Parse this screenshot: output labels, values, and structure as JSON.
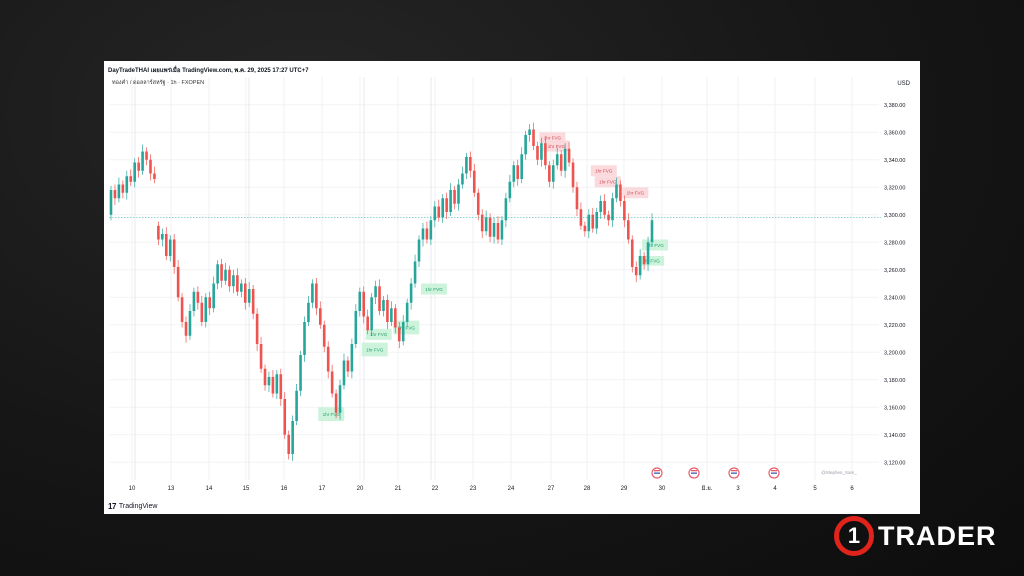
{
  "header": {
    "title_line": "DayTradeTHAI เผยแพร่เมื่อ TradingView.com, พ.ค. 29, 2025 17:27 UTC+7",
    "symbol_line": "ทองคำ / ดอลลาร์สหรัฐ · 1h · FXOPEN",
    "currency": "USD"
  },
  "footer": {
    "logo_text": "TradingView"
  },
  "watermark": "@Stephen_Sam_",
  "brand": {
    "number": "1",
    "name": "TRADER",
    "accent_color": "#e0241c"
  },
  "colors": {
    "up": "#26a69a",
    "down": "#ef5350",
    "bull_fvg": "#c8f2d8",
    "bear_fvg": "#fbd6da",
    "price_line": "#26a69a"
  },
  "chart_data": {
    "type": "candlestick",
    "title": "",
    "xlabel": "",
    "ylabel": "",
    "ylim": [
      3110,
      3390
    ],
    "y_ticks": [
      "3,380.00",
      "3,360.00",
      "3,340.00",
      "3,320.00",
      "3,300.00",
      "3,280.00",
      "3,260.00",
      "3,240.00",
      "3,220.00",
      "3,200.00",
      "3,180.00",
      "3,160.00",
      "3,140.00",
      "3,120.00"
    ],
    "x_tick_labels": [
      "10",
      "13",
      "14",
      "15",
      "16",
      "17",
      "20",
      "21",
      "22",
      "23",
      "24",
      "27",
      "28",
      "29",
      "30",
      "มิ.ย.",
      "3",
      "4",
      "5",
      "6"
    ],
    "current_price_line": 3298,
    "grid": true,
    "series": [
      {
        "values": [
          [
            3300,
            3318
          ],
          [
            3318,
            3312
          ],
          [
            3312,
            3322
          ],
          [
            3322,
            3316
          ],
          [
            3316,
            3328
          ],
          [
            3328,
            3324
          ],
          [
            3324,
            3338
          ],
          [
            3338,
            3332
          ],
          [
            3332,
            3346
          ],
          [
            3346,
            3340
          ],
          [
            3340,
            3330
          ],
          [
            3330,
            3326
          ],
          [
            3292,
            3282
          ],
          [
            3282,
            3286
          ],
          [
            3286,
            3270
          ],
          [
            3270,
            3282
          ],
          [
            3282,
            3262
          ],
          [
            3262,
            3240
          ],
          [
            3240,
            3222
          ],
          [
            3222,
            3212
          ],
          [
            3212,
            3230
          ],
          [
            3230,
            3244
          ],
          [
            3244,
            3236
          ],
          [
            3236,
            3222
          ],
          [
            3222,
            3240
          ],
          [
            3240,
            3232
          ],
          [
            3232,
            3250
          ],
          [
            3250,
            3264
          ],
          [
            3264,
            3252
          ],
          [
            3252,
            3260
          ],
          [
            3260,
            3248
          ],
          [
            3248,
            3256
          ],
          [
            3256,
            3244
          ],
          [
            3244,
            3250
          ],
          [
            3250,
            3236
          ],
          [
            3236,
            3246
          ],
          [
            3246,
            3228
          ],
          [
            3228,
            3206
          ],
          [
            3206,
            3188
          ],
          [
            3188,
            3176
          ],
          [
            3176,
            3182
          ],
          [
            3182,
            3170
          ],
          [
            3170,
            3184
          ],
          [
            3184,
            3166
          ],
          [
            3166,
            3140
          ],
          [
            3140,
            3126
          ],
          [
            3126,
            3150
          ],
          [
            3150,
            3172
          ],
          [
            3172,
            3198
          ],
          [
            3198,
            3222
          ],
          [
            3222,
            3236
          ],
          [
            3236,
            3250
          ],
          [
            3250,
            3232
          ],
          [
            3232,
            3220
          ],
          [
            3220,
            3204
          ],
          [
            3204,
            3186
          ],
          [
            3186,
            3170
          ],
          [
            3170,
            3156
          ],
          [
            3156,
            3176
          ],
          [
            3176,
            3194
          ],
          [
            3194,
            3186
          ],
          [
            3186,
            3206
          ],
          [
            3206,
            3230
          ],
          [
            3230,
            3244
          ],
          [
            3244,
            3226
          ],
          [
            3226,
            3216
          ],
          [
            3216,
            3240
          ],
          [
            3240,
            3248
          ],
          [
            3248,
            3230
          ],
          [
            3230,
            3238
          ],
          [
            3238,
            3222
          ],
          [
            3222,
            3232
          ],
          [
            3232,
            3218
          ],
          [
            3218,
            3208
          ],
          [
            3208,
            3222
          ],
          [
            3222,
            3236
          ],
          [
            3236,
            3250
          ],
          [
            3250,
            3266
          ],
          [
            3266,
            3282
          ],
          [
            3282,
            3290
          ],
          [
            3290,
            3282
          ],
          [
            3282,
            3296
          ],
          [
            3296,
            3306
          ],
          [
            3306,
            3298
          ],
          [
            3298,
            3312
          ],
          [
            3312,
            3302
          ],
          [
            3302,
            3318
          ],
          [
            3318,
            3308
          ],
          [
            3308,
            3322
          ],
          [
            3322,
            3330
          ],
          [
            3330,
            3342
          ],
          [
            3342,
            3332
          ],
          [
            3332,
            3316
          ],
          [
            3316,
            3300
          ],
          [
            3300,
            3288
          ],
          [
            3288,
            3298
          ],
          [
            3298,
            3284
          ],
          [
            3284,
            3294
          ],
          [
            3294,
            3282
          ],
          [
            3282,
            3296
          ],
          [
            3296,
            3312
          ],
          [
            3312,
            3324
          ],
          [
            3324,
            3336
          ],
          [
            3336,
            3326
          ],
          [
            3326,
            3344
          ],
          [
            3344,
            3358
          ],
          [
            3358,
            3362
          ],
          [
            3362,
            3350
          ],
          [
            3350,
            3340
          ],
          [
            3340,
            3352
          ],
          [
            3352,
            3336
          ],
          [
            3336,
            3324
          ],
          [
            3324,
            3336
          ],
          [
            3336,
            3344
          ],
          [
            3344,
            3332
          ],
          [
            3332,
            3348
          ],
          [
            3348,
            3338
          ],
          [
            3338,
            3320
          ],
          [
            3320,
            3304
          ],
          [
            3304,
            3292
          ],
          [
            3292,
            3288
          ],
          [
            3288,
            3300
          ],
          [
            3300,
            3290
          ],
          [
            3290,
            3302
          ],
          [
            3302,
            3310
          ],
          [
            3310,
            3300
          ],
          [
            3300,
            3296
          ],
          [
            3296,
            3312
          ],
          [
            3312,
            3322
          ],
          [
            3322,
            3310
          ],
          [
            3310,
            3296
          ],
          [
            3296,
            3282
          ],
          [
            3282,
            3262
          ],
          [
            3262,
            3256
          ],
          [
            3256,
            3270
          ],
          [
            3270,
            3264
          ],
          [
            3264,
            3280
          ],
          [
            3280,
            3296
          ]
        ]
      }
    ],
    "fvg_zones": [
      {
        "label": "1hr FVG",
        "kind": "bull",
        "candle": 53,
        "low": 3150,
        "high": 3160
      },
      {
        "label": "1hr FVG",
        "kind": "bull",
        "candle": 72,
        "low": 3213,
        "high": 3223
      },
      {
        "label": "1hr FVG",
        "kind": "bull",
        "candle": 64,
        "low": 3197,
        "high": 3207
      },
      {
        "label": "1hr FVG",
        "kind": "bull",
        "candle": 65,
        "low": 3209,
        "high": 3217
      },
      {
        "label": "1hr FVG",
        "kind": "bull",
        "candle": 79,
        "low": 3242,
        "high": 3250
      },
      {
        "label": "1hr FVG",
        "kind": "bear",
        "candle": 109,
        "low": 3352,
        "high": 3360
      },
      {
        "label": "1hr FVG",
        "kind": "bear",
        "candle": 110,
        "low": 3346,
        "high": 3354
      },
      {
        "label": "1hr FVG",
        "kind": "bear",
        "candle": 122,
        "low": 3328,
        "high": 3336
      },
      {
        "label": "1hr FVG",
        "kind": "bear",
        "candle": 123,
        "low": 3320,
        "high": 3328
      },
      {
        "label": "1hr FVG",
        "kind": "bear",
        "candle": 130,
        "low": 3312,
        "high": 3320
      },
      {
        "label": "1hr FVG",
        "kind": "bull",
        "candle": 135,
        "low": 3274,
        "high": 3282
      },
      {
        "label": "1hr FVG",
        "kind": "bull",
        "candle": 134,
        "low": 3263,
        "high": 3270
      }
    ]
  }
}
